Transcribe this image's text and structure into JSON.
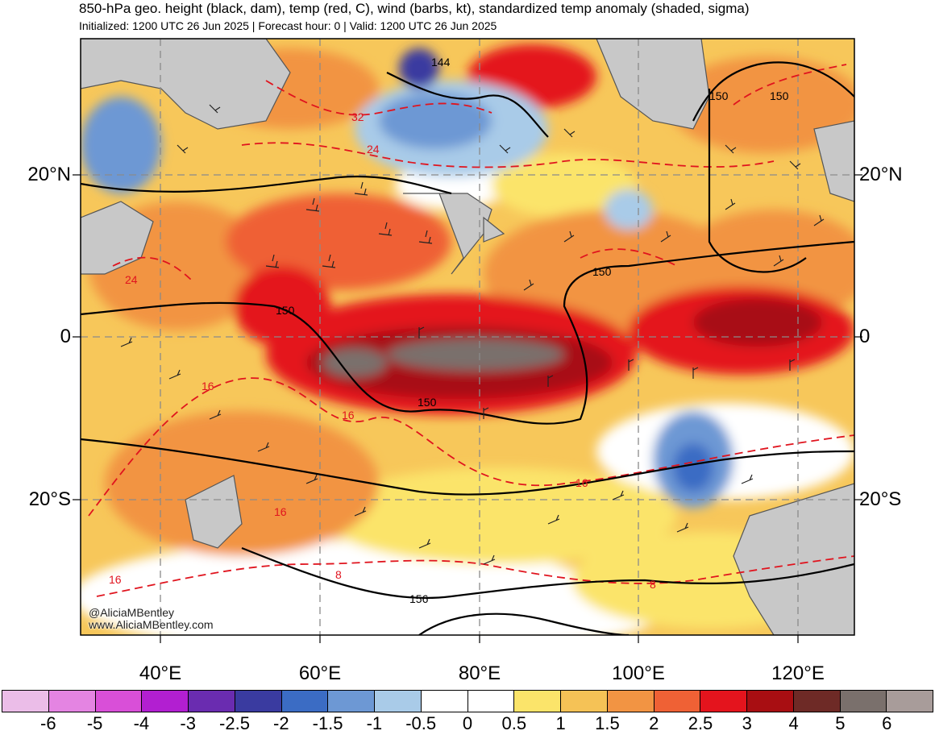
{
  "header": {
    "title": "850-hPa geo. height (black, dam), temp (red, C), wind (barbs, kt), standardized temp anomaly (shaded, sigma)",
    "subtitle": "Initialized: 1200 UTC 26 Jun 2025 | Forecast hour: 0 | Valid: 1200 UTC 26 Jun 2025"
  },
  "map": {
    "region": "Indian Ocean",
    "lat_labels": [
      "20°N",
      "0",
      "20°S"
    ],
    "lon_labels": [
      "40°E",
      "60°E",
      "80°E",
      "100°E",
      "120°E"
    ],
    "height_contour_labels": [
      "144",
      "150",
      "150",
      "150",
      "150",
      "150",
      "156"
    ],
    "temp_contour_labels": [
      "32",
      "24",
      "24",
      "16",
      "16",
      "16",
      "16",
      "16",
      "8",
      "8"
    ],
    "colors": {
      "land": "#c8c8c8",
      "height_contour": "#000000",
      "temp_contour": "#e0141e",
      "grid": "#888888"
    }
  },
  "credits": {
    "twitter": "@AliciaMBentley",
    "website": "www.AliciaMBentley.com"
  },
  "colorbar": {
    "tick_labels": [
      "-6",
      "-5",
      "-4",
      "-3",
      "-2.5",
      "-2",
      "-1.5",
      "-1",
      "-0.5",
      "0",
      "0.5",
      "1",
      "1.5",
      "2",
      "2.5",
      "3",
      "4",
      "5",
      "6"
    ],
    "colors": [
      "#ebbde8",
      "#e484e2",
      "#d94fd8",
      "#b21fd1",
      "#6a2cb0",
      "#3a3ba0",
      "#3b6cc4",
      "#6d98d4",
      "#a9cbe8",
      "#ffffff",
      "#ffffff",
      "#fbe46a",
      "#f5c256",
      "#f29443",
      "#ef6135",
      "#e4141d",
      "#a80e12",
      "#6e2a26",
      "#7a706c",
      "#a89c9a"
    ]
  }
}
